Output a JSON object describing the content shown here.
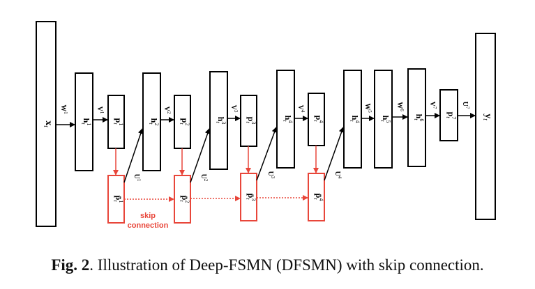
{
  "caption": {
    "label": "Fig. 2",
    "text": ". Illustration of Deep-FSMN (DFSMN) with skip connection."
  },
  "skip_label": {
    "line1": "skip",
    "line2": "connection"
  },
  "boxes": {
    "x": {
      "main": "x",
      "sub": "t"
    },
    "h1": {
      "main": "h",
      "sub": "t",
      "sup": "1"
    },
    "p1": {
      "main": "p",
      "sub": "t",
      "sup": "1"
    },
    "h2": {
      "main": "h",
      "sub": "t",
      "sup": "2"
    },
    "p2": {
      "main": "p",
      "sub": "t",
      "sup": "2"
    },
    "h3": {
      "main": "h",
      "sub": "t",
      "sup": "3"
    },
    "p3": {
      "main": "p",
      "sub": "t",
      "sup": "3"
    },
    "h4": {
      "main": "h",
      "sub": "t",
      "sup": "4"
    },
    "p4": {
      "main": "p",
      "sub": "t",
      "sup": "4"
    },
    "h4b": {
      "main": "h",
      "sub": "t",
      "sup": "4"
    },
    "h5": {
      "main": "h",
      "sub": "t",
      "sup": "5"
    },
    "h6": {
      "main": "h",
      "sub": "t",
      "sup": "6"
    },
    "p7": {
      "main": "p",
      "sub": "t",
      "sup": "7"
    },
    "y": {
      "main": "y",
      "sub": "t"
    },
    "pt1": {
      "main": "p̃",
      "sub": "t",
      "sup": "1"
    },
    "pt2": {
      "main": "p̃",
      "sub": "t",
      "sup": "2"
    },
    "pt3": {
      "main": "p̃",
      "sub": "t",
      "sup": "3"
    },
    "pt4": {
      "main": "p̃",
      "sub": "t",
      "sup": "4"
    }
  },
  "weights": {
    "W1": {
      "main": "W",
      "sup": "1"
    },
    "V1": {
      "main": "V",
      "sup": "1"
    },
    "V2": {
      "main": "V",
      "sup": "2"
    },
    "V3": {
      "main": "V",
      "sup": "3"
    },
    "V4": {
      "main": "V",
      "sup": "4"
    },
    "W5": {
      "main": "W",
      "sup": "5"
    },
    "W6": {
      "main": "W",
      "sup": "6"
    },
    "V7": {
      "main": "V",
      "sup": "7"
    },
    "U7": {
      "main": "U",
      "sup": "7"
    },
    "U1": {
      "main": "U",
      "sup": "1"
    },
    "U2": {
      "main": "U",
      "sup": "2"
    },
    "U3": {
      "main": "U",
      "sup": "3"
    },
    "U4": {
      "main": "U",
      "sup": "4"
    }
  },
  "colors": {
    "black": "#000000",
    "red": "#e8463a"
  }
}
